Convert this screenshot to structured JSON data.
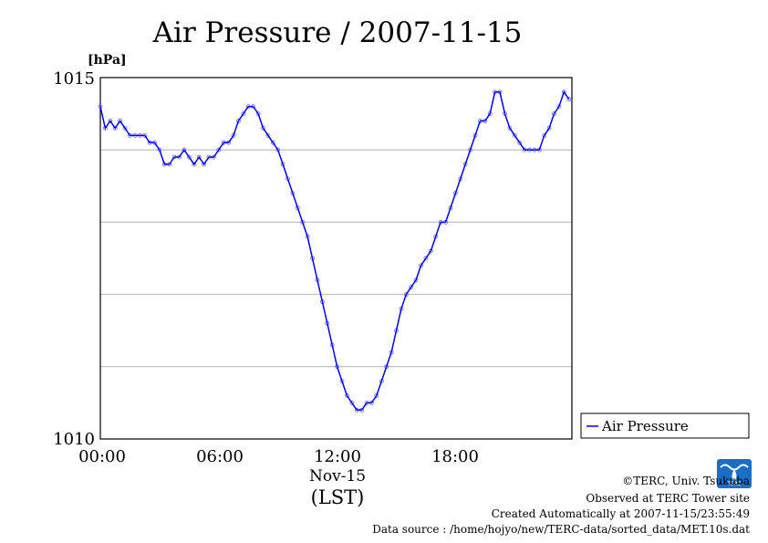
{
  "chart_data": {
    "type": "line",
    "title": "Air Pressure / 2007-11-15",
    "y_unit": "[hPa]",
    "ylim": [
      1010,
      1015
    ],
    "y_tick_labels": [
      "1015",
      "1010"
    ],
    "x_range_hours": [
      0,
      23.9
    ],
    "x_tick_labels": [
      "00:00",
      "06:00",
      "12:00",
      "18:00"
    ],
    "x_date_label": "Nov-15",
    "x_timezone_label": "(LST)",
    "grid": true,
    "legend_position": "right",
    "series": [
      {
        "name": "Air Pressure",
        "color": "#0000ff",
        "x": [
          0.0,
          0.25,
          0.5,
          0.75,
          1.0,
          1.25,
          1.5,
          1.75,
          2.0,
          2.25,
          2.5,
          2.75,
          3.0,
          3.25,
          3.5,
          3.75,
          4.0,
          4.25,
          4.5,
          4.75,
          5.0,
          5.25,
          5.5,
          5.75,
          6.0,
          6.25,
          6.5,
          6.75,
          7.0,
          7.25,
          7.5,
          7.75,
          8.0,
          8.25,
          8.5,
          8.75,
          9.0,
          9.25,
          9.5,
          9.75,
          10.0,
          10.25,
          10.5,
          10.75,
          11.0,
          11.25,
          11.5,
          11.75,
          12.0,
          12.25,
          12.5,
          12.75,
          13.0,
          13.25,
          13.5,
          13.75,
          14.0,
          14.25,
          14.5,
          14.75,
          15.0,
          15.25,
          15.5,
          15.75,
          16.0,
          16.25,
          16.5,
          16.75,
          17.0,
          17.25,
          17.5,
          17.75,
          18.0,
          18.25,
          18.5,
          18.75,
          19.0,
          19.25,
          19.5,
          19.75,
          20.0,
          20.25,
          20.5,
          20.75,
          21.0,
          21.25,
          21.5,
          21.75,
          22.0,
          22.25,
          22.5,
          22.75,
          23.0,
          23.25,
          23.5,
          23.75
        ],
        "values": [
          1014.6,
          1014.3,
          1014.4,
          1014.3,
          1014.4,
          1014.3,
          1014.2,
          1014.2,
          1014.2,
          1014.2,
          1014.1,
          1014.1,
          1014.0,
          1013.8,
          1013.8,
          1013.9,
          1013.9,
          1014.0,
          1013.9,
          1013.8,
          1013.9,
          1013.8,
          1013.9,
          1013.9,
          1014.0,
          1014.1,
          1014.1,
          1014.2,
          1014.4,
          1014.5,
          1014.6,
          1014.6,
          1014.5,
          1014.3,
          1014.2,
          1014.1,
          1014.0,
          1013.8,
          1013.6,
          1013.4,
          1013.2,
          1013.0,
          1012.8,
          1012.5,
          1012.2,
          1011.9,
          1011.6,
          1011.3,
          1011.0,
          1010.8,
          1010.6,
          1010.5,
          1010.4,
          1010.4,
          1010.5,
          1010.5,
          1010.6,
          1010.8,
          1011.0,
          1011.2,
          1011.5,
          1011.8,
          1012.0,
          1012.1,
          1012.2,
          1012.4,
          1012.5,
          1012.6,
          1012.8,
          1013.0,
          1013.0,
          1013.2,
          1013.4,
          1013.6,
          1013.8,
          1014.0,
          1014.2,
          1014.4,
          1014.4,
          1014.5,
          1014.8,
          1014.8,
          1014.5,
          1014.3,
          1014.2,
          1014.1,
          1014.0,
          1014.0,
          1014.0,
          1014.0,
          1014.2,
          1014.3,
          1014.5,
          1014.6,
          1014.8,
          1014.7
        ]
      }
    ]
  },
  "credits": {
    "copyright": "©TERC, Univ. Tsukuba",
    "site": "Observed at TERC Tower site",
    "created": "Created Automatically at 2007-11-15/23:55:49",
    "source": "Data source : /home/hojyo/new/TERC-data/sorted_data/MET.10s.dat"
  },
  "logo": {
    "text": "TERC",
    "color": "#1a6fc4"
  }
}
